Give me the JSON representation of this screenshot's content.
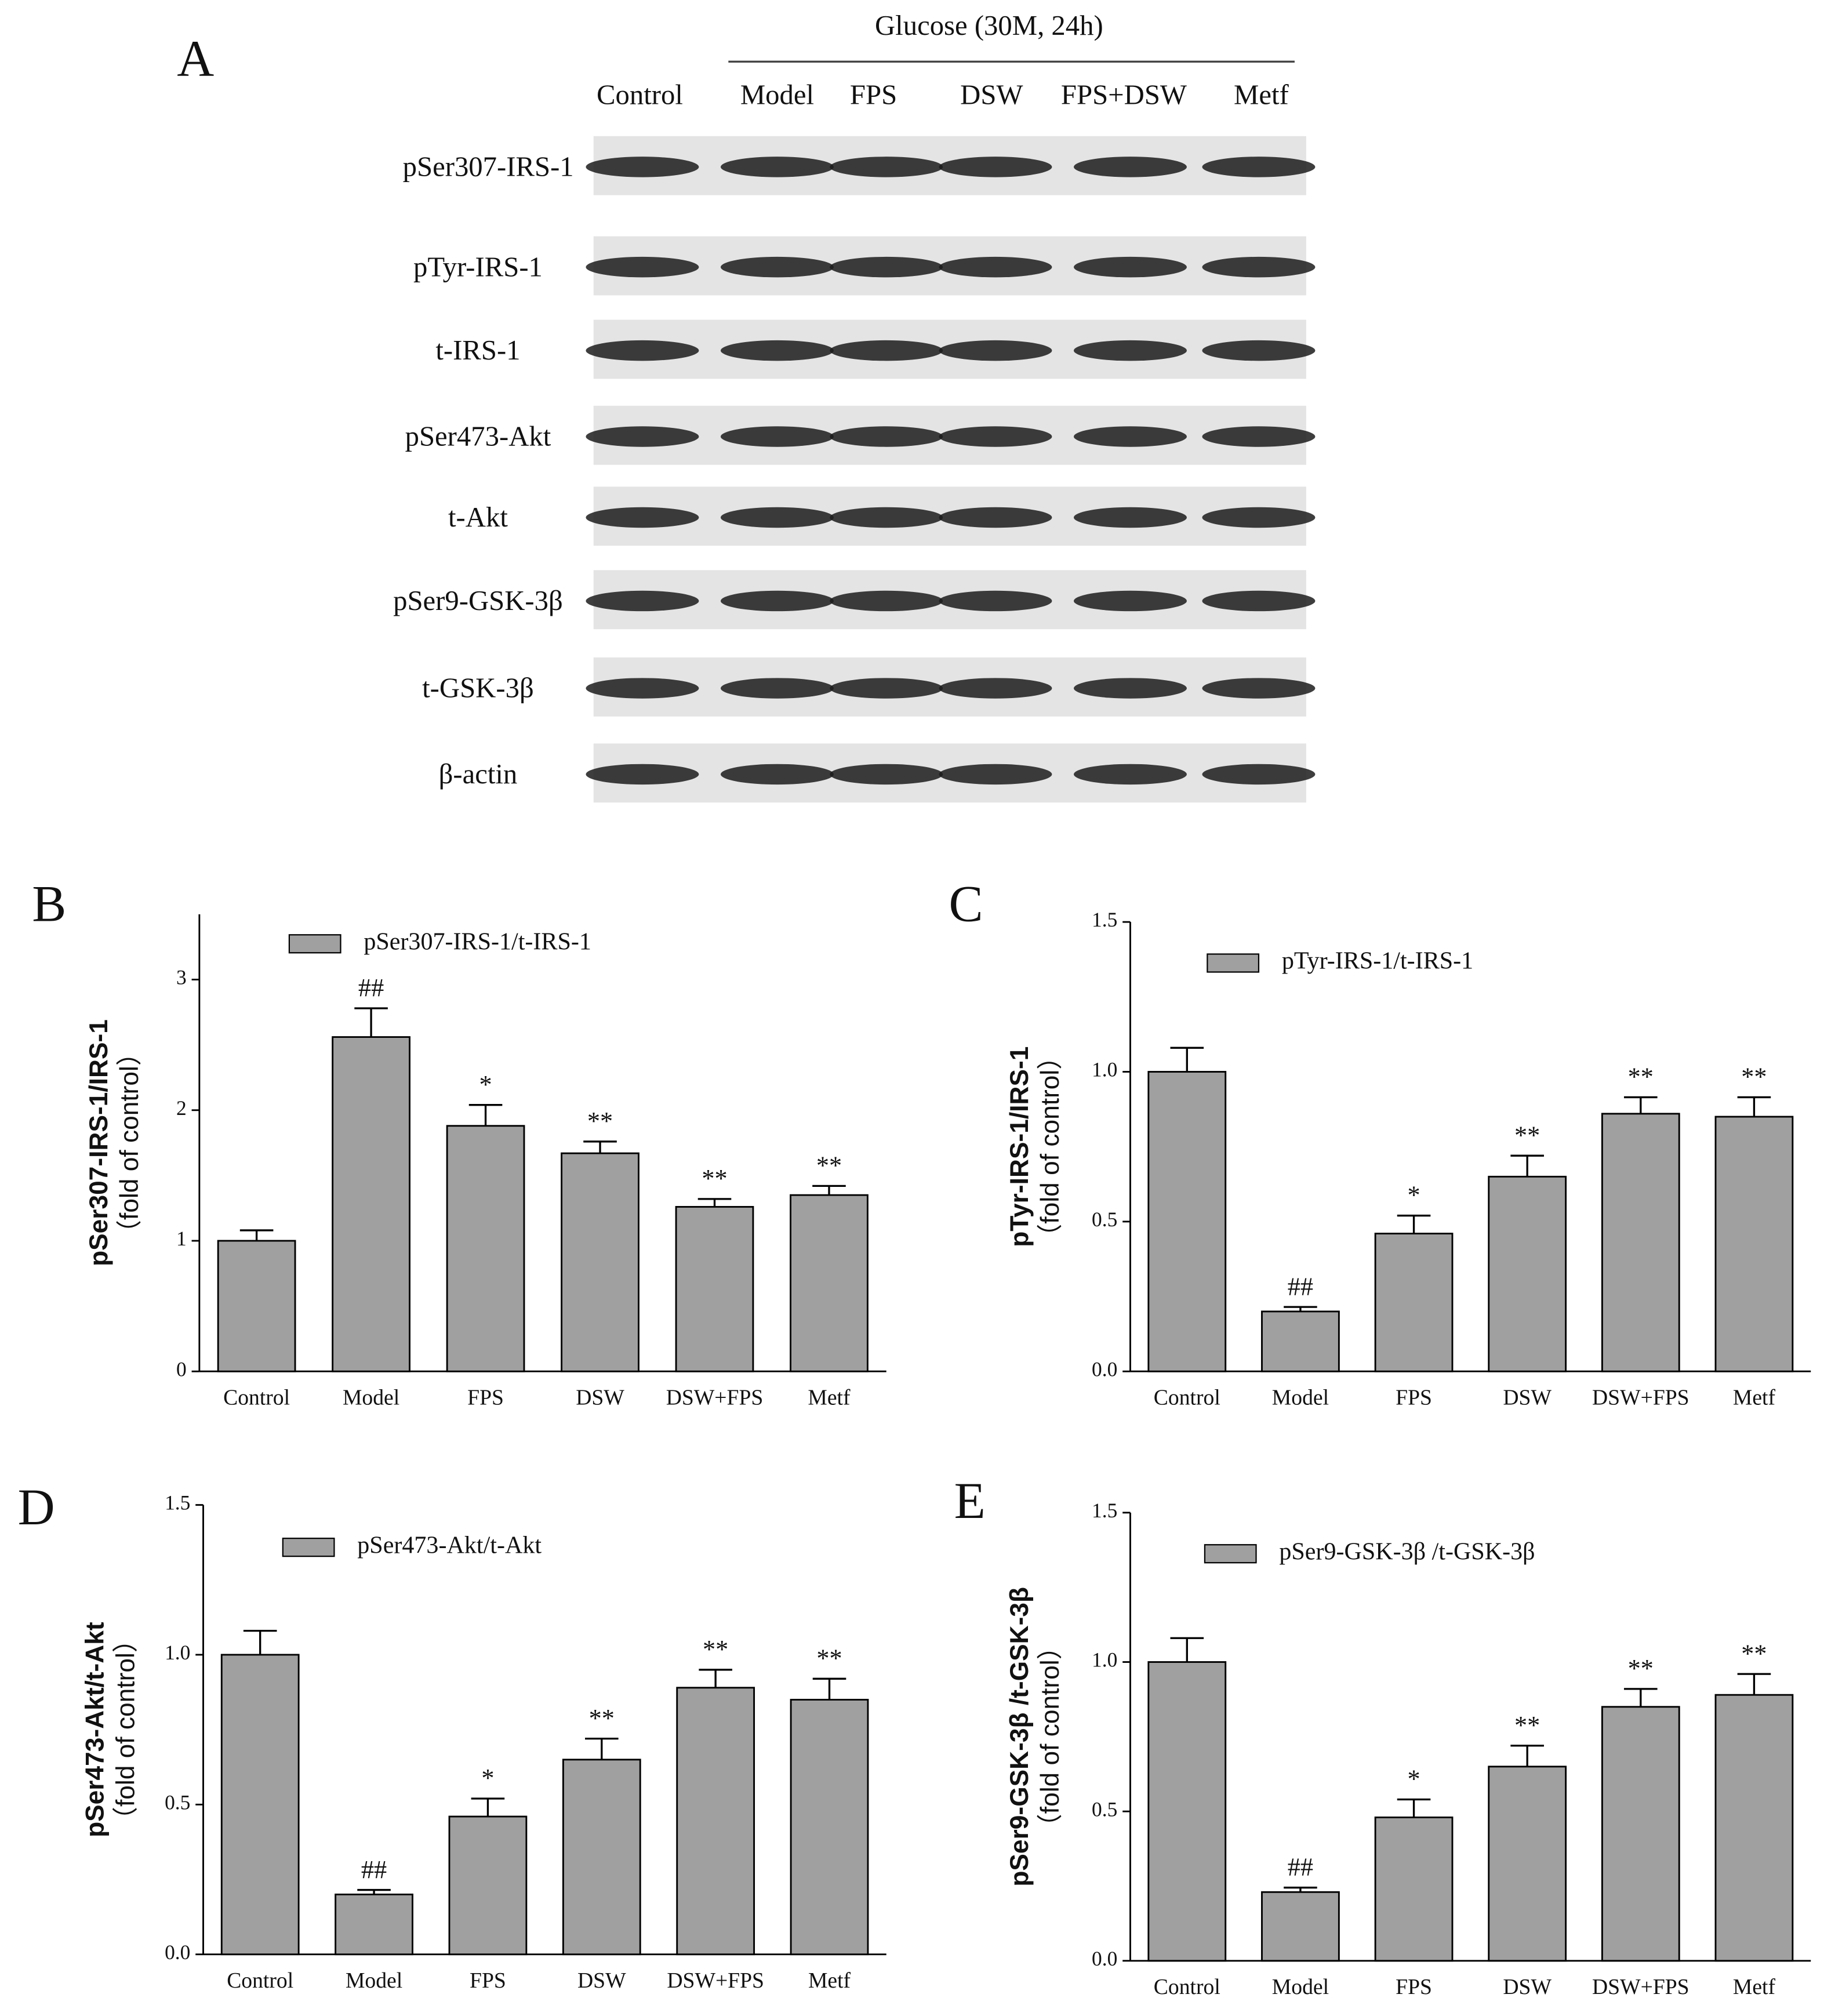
{
  "blot": {
    "panel": "A",
    "treatment": "Glucose (30M, 24h)",
    "lanes": [
      "Control",
      "Model",
      "FPS",
      "DSW",
      "FPS+DSW",
      "Metf"
    ],
    "rows": [
      "pSer307-IRS-1",
      "pTyr-IRS-1",
      "t-IRS-1",
      "pSer473-Akt",
      "t-Akt",
      "pSer9-GSK-3β",
      "t-GSK-3β",
      "β-actin"
    ]
  },
  "chart_data": [
    {
      "type": "bar",
      "panel": "B",
      "y_label": [
        "pSer307-IRS-1/IRS-1",
        "（fold of control）"
      ],
      "categories": [
        "Control",
        "Model",
        "FPS",
        "DSW",
        "DSW+FPS",
        "Metf"
      ],
      "series": [
        {
          "name": "pSer307-IRS-1/t-IRS-1",
          "color": "#a0a0a0",
          "values": [
            1.0,
            2.56,
            1.88,
            1.67,
            1.26,
            1.35
          ],
          "errors": [
            0.08,
            0.22,
            0.16,
            0.09,
            0.06,
            0.07
          ]
        }
      ],
      "annotations": [
        null,
        "##",
        "*",
        "**",
        "**",
        "**"
      ],
      "ylim": [
        0,
        3.5
      ],
      "yticks": [
        0,
        1,
        2,
        3
      ]
    },
    {
      "type": "bar",
      "panel": "C",
      "y_label": [
        "pTyr-IRS-1/IRS-1",
        "（fold of control）"
      ],
      "categories": [
        "Control",
        "Model",
        "FPS",
        "DSW",
        "DSW+FPS",
        "Metf"
      ],
      "series": [
        {
          "name": "pTyr-IRS-1/t-IRS-1",
          "color": "#a0a0a0",
          "values": [
            1.0,
            0.2,
            0.46,
            0.65,
            0.86,
            0.85
          ],
          "errors": [
            0.08,
            0.015,
            0.06,
            0.07,
            0.055,
            0.065
          ]
        }
      ],
      "annotations": [
        null,
        "##",
        "*",
        "**",
        "**",
        "**"
      ],
      "ylim": [
        0,
        1.5
      ],
      "yticks": [
        {
          "value": 0,
          "label": "0.0"
        },
        0.5,
        {
          "value": 1,
          "label": "1.0"
        },
        1.5
      ]
    },
    {
      "type": "bar",
      "panel": "D",
      "y_label": [
        "pSer473-Akt/t-Akt",
        "（fold of control）"
      ],
      "categories": [
        "Control",
        "Model",
        "FPS",
        "DSW",
        "DSW+FPS",
        "Metf"
      ],
      "series": [
        {
          "name": "pSer473-Akt/t-Akt",
          "color": "#a0a0a0",
          "values": [
            1.0,
            0.2,
            0.46,
            0.65,
            0.89,
            0.85
          ],
          "errors": [
            0.08,
            0.015,
            0.06,
            0.07,
            0.06,
            0.07
          ]
        }
      ],
      "annotations": [
        null,
        "##",
        "*",
        "**",
        "**",
        "**"
      ],
      "ylim": [
        0,
        1.5
      ],
      "yticks": [
        {
          "value": 0,
          "label": "0.0"
        },
        0.5,
        {
          "value": 1,
          "label": "1.0"
        },
        1.5
      ]
    },
    {
      "type": "bar",
      "panel": "E",
      "y_label": [
        "pSer9-GSK-3β /t-GSK-3β",
        "（fold of control）"
      ],
      "categories": [
        "Control",
        "Model",
        "FPS",
        "DSW",
        "DSW+FPS",
        "Metf"
      ],
      "series": [
        {
          "name": "pSer9-GSK-3β /t-GSK-3β",
          "color": "#a0a0a0",
          "values": [
            1.0,
            0.23,
            0.48,
            0.65,
            0.85,
            0.89
          ],
          "errors": [
            0.08,
            0.015,
            0.06,
            0.07,
            0.06,
            0.07
          ]
        }
      ],
      "annotations": [
        null,
        "##",
        "*",
        "**",
        "**",
        "**"
      ],
      "ylim": [
        0,
        1.5
      ],
      "yticks": [
        {
          "value": 0,
          "label": "0.0"
        },
        0.5,
        {
          "value": 1,
          "label": "1.0"
        },
        1.5
      ]
    }
  ]
}
